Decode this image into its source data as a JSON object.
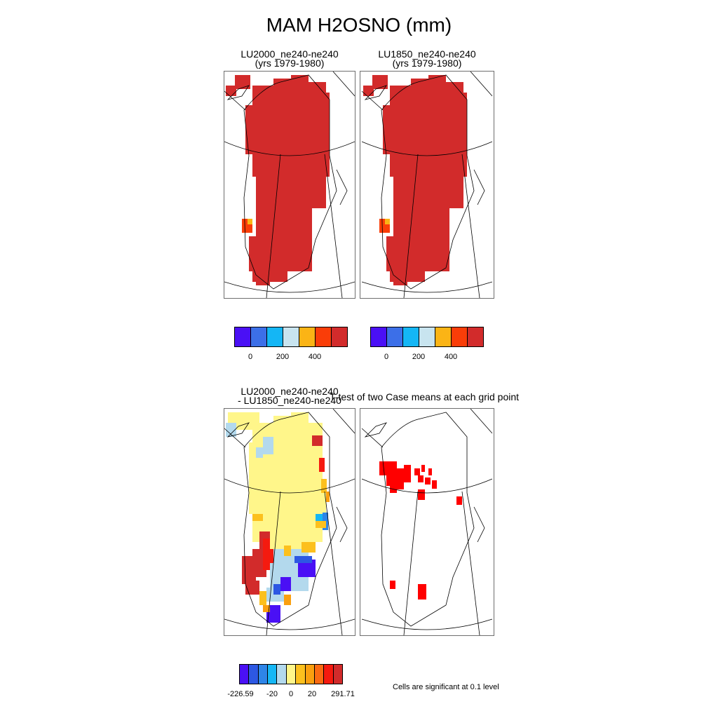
{
  "main_title": "MAM H2OSNO (mm)",
  "panels": {
    "top_left": {
      "line1": "LU2000_ne240-ne240",
      "line2": "(yrs 1979-1980)"
    },
    "top_right": {
      "line1": "LU1850_ne240-ne240",
      "line2": "(yrs 1979-1980)"
    },
    "bottom_left": {
      "line1": "LU2000_ne240-ne240",
      "line2": "- LU1850_ne240-ne240"
    },
    "bottom_right": {
      "line1": "T-test of two Case means at each grid point"
    }
  },
  "colorbars": {
    "top": {
      "colors": [
        "#4a10f5",
        "#3c6fe8",
        "#14b6f5",
        "#c8e4ef",
        "#fbb415",
        "#fa3d08",
        "#d22b2b"
      ],
      "tick_labels": [
        "0",
        "200",
        "400"
      ]
    },
    "bottom": {
      "colors": [
        "#4a10f5",
        "#2d58e3",
        "#2e85e8",
        "#15b7f5",
        "#b3d9ed",
        "#fff68a",
        "#fcc01e",
        "#fa9f0f",
        "#fb6a12",
        "#f51a0f",
        "#d22b2b"
      ],
      "tick_labels": [
        "-226.59",
        "-20",
        "0",
        "20",
        "291.71"
      ]
    }
  },
  "significance_note": "Cells are significant at 0.1 level",
  "significance_color": "#ff0000"
}
